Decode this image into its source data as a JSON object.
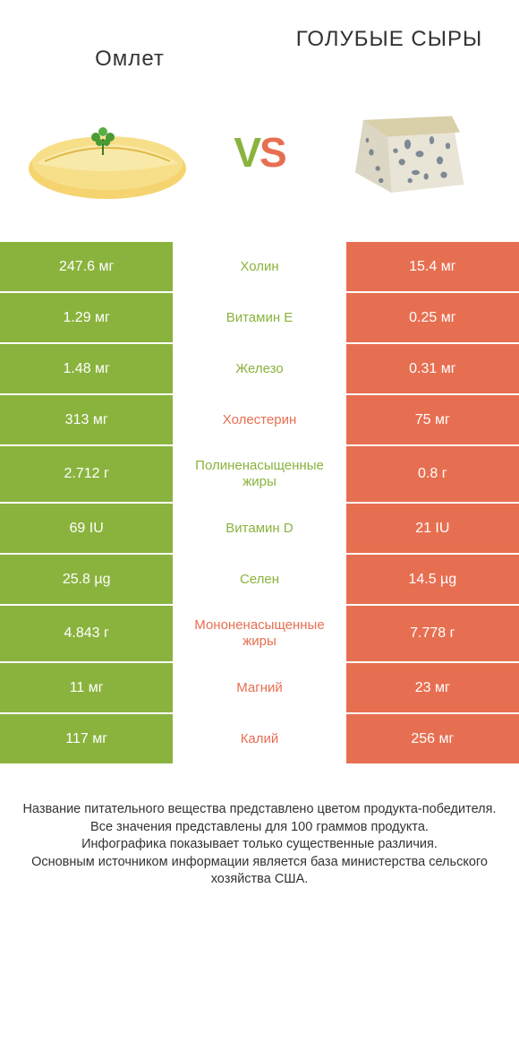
{
  "colors": {
    "green": "#8ab33e",
    "orange": "#e76f51",
    "white": "#ffffff",
    "text": "#333333"
  },
  "fonts": {
    "title_size": 24,
    "vs_size": 46,
    "cell_value_size": 16,
    "cell_label_size": 15,
    "footer_size": 14.5
  },
  "header": {
    "left_title": "Омлет",
    "right_title": "ГОЛУБЫЕ СЫРЫ",
    "vs_v": "V",
    "vs_s": "S"
  },
  "rows": [
    {
      "left": "247.6 мг",
      "label": "Холин",
      "right": "15.4 мг",
      "winner": "left",
      "tall": false
    },
    {
      "left": "1.29 мг",
      "label": "Витамин E",
      "right": "0.25 мг",
      "winner": "left",
      "tall": false
    },
    {
      "left": "1.48 мг",
      "label": "Железо",
      "right": "0.31 мг",
      "winner": "left",
      "tall": false
    },
    {
      "left": "313 мг",
      "label": "Холестерин",
      "right": "75 мг",
      "winner": "right",
      "tall": false
    },
    {
      "left": "2.712 г",
      "label": "Полиненасыщенные жиры",
      "right": "0.8 г",
      "winner": "left",
      "tall": true
    },
    {
      "left": "69 IU",
      "label": "Витамин D",
      "right": "21 IU",
      "winner": "left",
      "tall": false
    },
    {
      "left": "25.8 µg",
      "label": "Селен",
      "right": "14.5 µg",
      "winner": "left",
      "tall": false
    },
    {
      "left": "4.843 г",
      "label": "Мононенасыщенные жиры",
      "right": "7.778 г",
      "winner": "right",
      "tall": true
    },
    {
      "left": "11 мг",
      "label": "Магний",
      "right": "23 мг",
      "winner": "right",
      "tall": false
    },
    {
      "left": "117 мг",
      "label": "Калий",
      "right": "256 мг",
      "winner": "right",
      "tall": false
    }
  ],
  "footer": {
    "line1": "Название питательного вещества представлено цветом продукта-победителя.",
    "line2": "Все значения представлены для 100 граммов продукта.",
    "line3": "Инфографика показывает только существенные различия.",
    "line4": "Основным источником информации является база министерства сельского хозяйства США."
  }
}
